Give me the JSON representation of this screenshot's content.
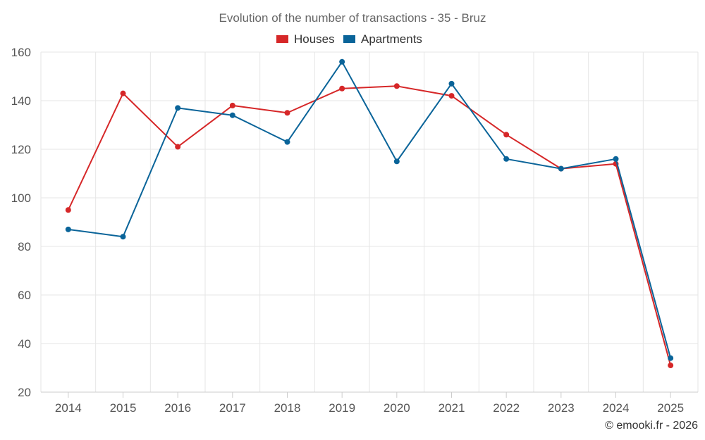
{
  "chart_data": {
    "type": "line",
    "title": "Evolution of the number of transactions - 35 - Bruz",
    "categories": [
      "2014",
      "2015",
      "2016",
      "2017",
      "2018",
      "2019",
      "2020",
      "2021",
      "2022",
      "2023",
      "2024",
      "2025"
    ],
    "series": [
      {
        "name": "Houses",
        "color": "#d62728",
        "values": [
          95,
          143,
          121,
          138,
          135,
          145,
          146,
          142,
          126,
          112,
          114,
          31
        ]
      },
      {
        "name": "Apartments",
        "color": "#0a6499",
        "values": [
          87,
          84,
          137,
          134,
          123,
          156,
          115,
          147,
          116,
          112,
          116,
          34
        ]
      }
    ],
    "ylim": [
      20,
      160
    ],
    "yticks": [
      20,
      40,
      60,
      80,
      100,
      120,
      140,
      160
    ],
    "grid": true,
    "legend_position": "top-center"
  },
  "credit": "© emooki.fr - 2026"
}
